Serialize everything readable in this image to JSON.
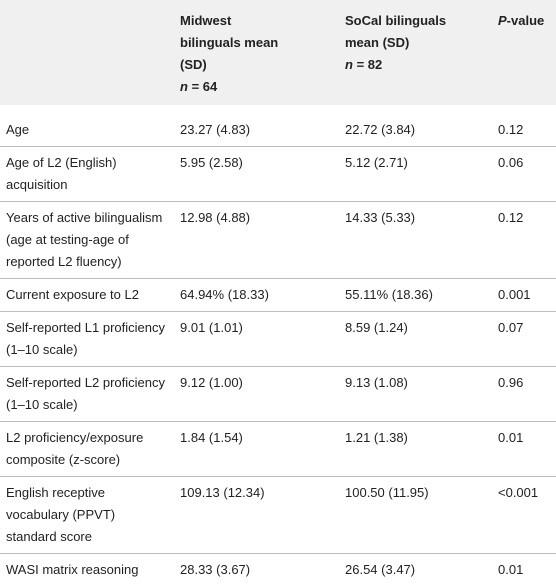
{
  "table": {
    "header": [
      {
        "text": null
      },
      {
        "text": "Midwest bilinguals mean (SD)",
        "n_symbol": "n",
        "n_value": "= 64"
      },
      {
        "text": "SoCal bilinguals mean (SD)",
        "n_symbol": "n",
        "n_value": "= 82"
      },
      {
        "text_italic": "P",
        "text": "-value"
      }
    ],
    "rows": [
      [
        "Age",
        "23.27 (4.83)",
        "22.72 (3.84)",
        "0.12"
      ],
      [
        "Age of L2 (English) acquisition",
        "5.95 (2.58)",
        "5.12 (2.71)",
        "0.06"
      ],
      [
        "Years of active bilingualism (age at testing-age of reported L2 fluency)",
        "12.98 (4.88)",
        "14.33 (5.33)",
        "0.12"
      ],
      [
        "Current exposure to L2",
        "64.94% (18.33)",
        "55.11% (18.36)",
        "0.001"
      ],
      [
        "Self-reported L1 proficiency (1–10 scale)",
        "9.01 (1.01)",
        "8.59 (1.24)",
        "0.07"
      ],
      [
        "Self-reported L2 proficiency (1–10 scale)",
        "9.12 (1.00)",
        "9.13 (1.08)",
        "0.96"
      ],
      [
        "L2 proficiency/exposure composite (z-score)",
        "1.84 (1.54)",
        "1.21 (1.38)",
        "0.01"
      ],
      [
        "English receptive vocabulary (PPVT) standard score",
        "109.13 (12.34)",
        "100.50 (11.95)",
        "<0.001"
      ],
      [
        "WASI matrix reasoning",
        "28.33 (3.67)",
        "26.54 (3.47)",
        "0.01"
      ]
    ]
  }
}
